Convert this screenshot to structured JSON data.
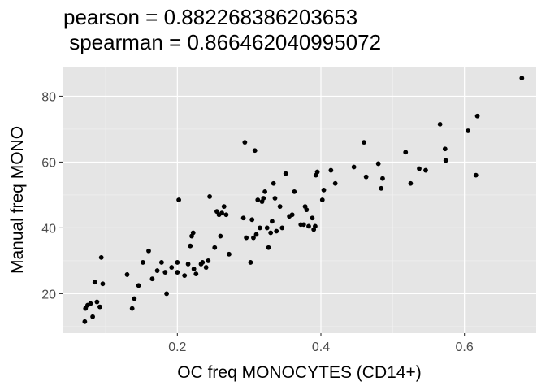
{
  "chart_data": {
    "type": "scatter",
    "title_lines": [
      "pearson = 0.882268386203653",
      " spearman = 0.866462040995072"
    ],
    "xlabel": "OC freq MONOCYTES (CD14+)",
    "ylabel": "Manual freq MONO",
    "xlim": [
      0.04,
      0.7
    ],
    "ylim": [
      8,
      89
    ],
    "x_ticks": [
      0.2,
      0.4,
      0.6
    ],
    "x_tick_labels": [
      "0.2",
      "0.4",
      "0.6"
    ],
    "y_ticks": [
      20,
      40,
      60,
      80
    ],
    "y_tick_labels": [
      "20",
      "40",
      "60",
      "80"
    ],
    "grid": true,
    "colors": {
      "panel": "#e5e5e5",
      "grid_major": "#ffffff",
      "grid_minor": "#f2f2f2",
      "point": "#000000"
    },
    "points": [
      [
        0.071,
        11.5
      ],
      [
        0.075,
        16.5
      ],
      [
        0.079,
        17.0
      ],
      [
        0.082,
        13.0
      ],
      [
        0.085,
        23.5
      ],
      [
        0.088,
        17.5
      ],
      [
        0.092,
        16.0
      ],
      [
        0.094,
        31.0
      ],
      [
        0.096,
        23.0
      ],
      [
        0.072,
        15.5
      ],
      [
        0.13,
        25.8
      ],
      [
        0.137,
        15.5
      ],
      [
        0.14,
        18.5
      ],
      [
        0.146,
        22.5
      ],
      [
        0.152,
        29.5
      ],
      [
        0.16,
        33.0
      ],
      [
        0.165,
        24.5
      ],
      [
        0.172,
        27.0
      ],
      [
        0.178,
        29.5
      ],
      [
        0.183,
        26.5
      ],
      [
        0.185,
        20.0
      ],
      [
        0.192,
        28.0
      ],
      [
        0.2,
        29.5
      ],
      [
        0.202,
        48.5
      ],
      [
        0.2,
        26.5
      ],
      [
        0.21,
        25.5
      ],
      [
        0.215,
        29.0
      ],
      [
        0.218,
        34.5
      ],
      [
        0.22,
        37.5
      ],
      [
        0.222,
        38.5
      ],
      [
        0.223,
        27.5
      ],
      [
        0.226,
        26.0
      ],
      [
        0.233,
        29.0
      ],
      [
        0.235,
        29.5
      ],
      [
        0.24,
        28.0
      ],
      [
        0.243,
        30.0
      ],
      [
        0.245,
        49.5
      ],
      [
        0.252,
        34.0
      ],
      [
        0.255,
        45.0
      ],
      [
        0.258,
        44.0
      ],
      [
        0.26,
        37.5
      ],
      [
        0.262,
        44.5
      ],
      [
        0.265,
        46.5
      ],
      [
        0.268,
        44.0
      ],
      [
        0.272,
        32.0
      ],
      [
        0.292,
        43.0
      ],
      [
        0.294,
        66.0
      ],
      [
        0.296,
        37.0
      ],
      [
        0.302,
        29.5
      ],
      [
        0.304,
        42.5
      ],
      [
        0.306,
        37.0
      ],
      [
        0.308,
        63.5
      ],
      [
        0.31,
        38.0
      ],
      [
        0.312,
        48.5
      ],
      [
        0.315,
        40.0
      ],
      [
        0.318,
        48.0
      ],
      [
        0.32,
        49.0
      ],
      [
        0.322,
        51.0
      ],
      [
        0.325,
        40.0
      ],
      [
        0.327,
        34.0
      ],
      [
        0.33,
        38.5
      ],
      [
        0.332,
        42.0
      ],
      [
        0.334,
        53.5
      ],
      [
        0.336,
        49.0
      ],
      [
        0.338,
        39.0
      ],
      [
        0.343,
        46.5
      ],
      [
        0.346,
        40.0
      ],
      [
        0.351,
        56.5
      ],
      [
        0.356,
        43.5
      ],
      [
        0.36,
        44.0
      ],
      [
        0.363,
        51.0
      ],
      [
        0.372,
        41.0
      ],
      [
        0.376,
        41.0
      ],
      [
        0.378,
        46.5
      ],
      [
        0.38,
        45.5
      ],
      [
        0.383,
        40.5
      ],
      [
        0.388,
        43.0
      ],
      [
        0.39,
        39.5
      ],
      [
        0.392,
        40.5
      ],
      [
        0.393,
        56.0
      ],
      [
        0.395,
        57.0
      ],
      [
        0.402,
        48.5
      ],
      [
        0.404,
        51.5
      ],
      [
        0.414,
        57.5
      ],
      [
        0.42,
        53.5
      ],
      [
        0.446,
        58.5
      ],
      [
        0.46,
        66.0
      ],
      [
        0.463,
        55.5
      ],
      [
        0.48,
        59.5
      ],
      [
        0.484,
        52.0
      ],
      [
        0.486,
        55.0
      ],
      [
        0.518,
        63.0
      ],
      [
        0.525,
        53.5
      ],
      [
        0.537,
        58.0
      ],
      [
        0.546,
        57.5
      ],
      [
        0.566,
        71.5
      ],
      [
        0.573,
        64.0
      ],
      [
        0.574,
        60.5
      ],
      [
        0.605,
        69.5
      ],
      [
        0.616,
        56.0
      ],
      [
        0.618,
        74.0
      ],
      [
        0.68,
        85.5
      ]
    ]
  }
}
